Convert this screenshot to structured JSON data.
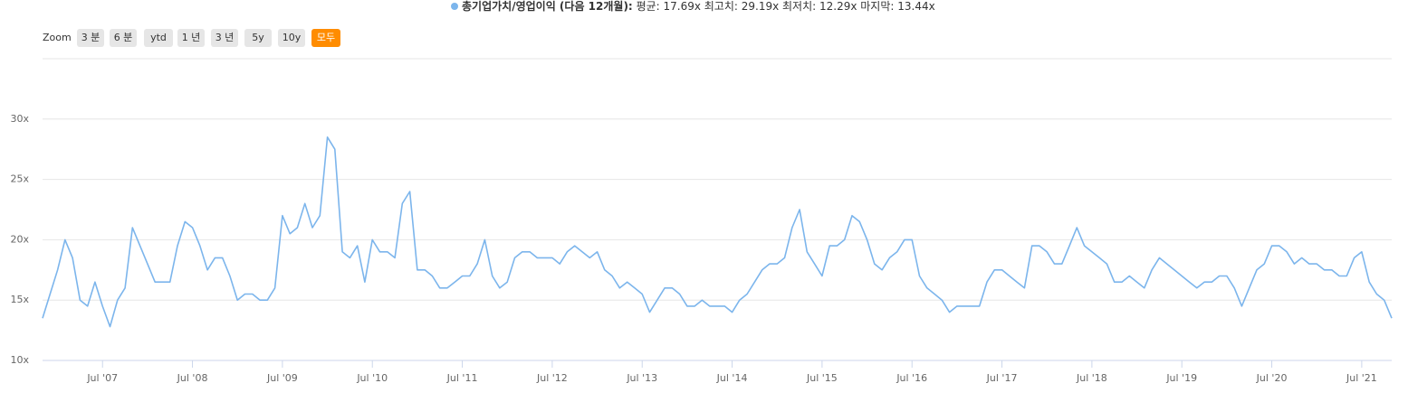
{
  "zoom_label": "Zoom",
  "zoom_buttons": [
    "3 분",
    "6 분",
    "ytd",
    "1 년",
    "3 년",
    "5y",
    "10y",
    "모두"
  ],
  "zoom_selected": 7,
  "chart_data": {
    "type": "line",
    "subtitle": "평균: 17.69x 최고치: 29.19x 최저치: 12.29x 마지막: 13.44x",
    "xlim": [
      "2006-11",
      "2021-11"
    ],
    "xticks": [
      {
        "value": "2007-07",
        "label": "Jul '07"
      },
      {
        "value": "2008-07",
        "label": "Jul '08"
      },
      {
        "value": "2009-07",
        "label": "Jul '09"
      },
      {
        "value": "2010-07",
        "label": "Jul '10"
      },
      {
        "value": "2011-07",
        "label": "Jul '11"
      },
      {
        "value": "2012-07",
        "label": "Jul '12"
      },
      {
        "value": "2013-07",
        "label": "Jul '13"
      },
      {
        "value": "2014-07",
        "label": "Jul '14"
      },
      {
        "value": "2015-07",
        "label": "Jul '15"
      },
      {
        "value": "2016-07",
        "label": "Jul '16"
      },
      {
        "value": "2017-07",
        "label": "Jul '17"
      },
      {
        "value": "2018-07",
        "label": "Jul '18"
      },
      {
        "value": "2019-07",
        "label": "Jul '19"
      },
      {
        "value": "2020-07",
        "label": "Jul '20"
      },
      {
        "value": "2021-07",
        "label": "Jul '21"
      }
    ],
    "ylim": [
      10,
      35
    ],
    "yticks": [
      {
        "value": 10,
        "label": "10x"
      },
      {
        "value": 15,
        "label": "15x"
      },
      {
        "value": 20,
        "label": "20x"
      },
      {
        "value": 25,
        "label": "25x"
      },
      {
        "value": 30,
        "label": "30x"
      }
    ],
    "grid": true,
    "series": [
      {
        "name": "총기업가치/영업이익 (다음 12개월):",
        "color": "#7cb5ec",
        "values": [
          13.5,
          15.5,
          17.5,
          20,
          18.5,
          15,
          14.5,
          16.5,
          14.5,
          12.8,
          15,
          16,
          21,
          19.5,
          18,
          16.5,
          16.5,
          16.5,
          19.5,
          21.5,
          21,
          19.5,
          17.5,
          18.5,
          18.5,
          17,
          15,
          15.5,
          15.5,
          15,
          15,
          16,
          22,
          20.5,
          21,
          23,
          21,
          22,
          28.5,
          27.5,
          19,
          18.5,
          19.5,
          16.5,
          20,
          19,
          19,
          18.5,
          23,
          24,
          17.5,
          17.5,
          17,
          16,
          16,
          16.5,
          17,
          17,
          18,
          20,
          17,
          16,
          16.5,
          18.5,
          19,
          19,
          18.5,
          18.5,
          18.5,
          18,
          19,
          19.5,
          19,
          18.5,
          19,
          17.5,
          17,
          16,
          16.5,
          16,
          15.5,
          14,
          15,
          16,
          16,
          15.5,
          14.5,
          14.5,
          15,
          14.5,
          14.5,
          14.5,
          14,
          15,
          15.5,
          16.5,
          17.5,
          18,
          18,
          18.5,
          21,
          22.5,
          19,
          18,
          17,
          19.5,
          19.5,
          20,
          22,
          21.5,
          20,
          18,
          17.5,
          18.5,
          19,
          20,
          20,
          17,
          16,
          15.5,
          15,
          14,
          14.5,
          14.5,
          14.5,
          14.5,
          16.5,
          17.5,
          17.5,
          17,
          16.5,
          16,
          19.5,
          19.5,
          19,
          18,
          18,
          19.5,
          21,
          19.5,
          19,
          18.5,
          18,
          16.5,
          16.5,
          17,
          16.5,
          16,
          17.5,
          18.5,
          18,
          17.5,
          17,
          16.5,
          16,
          16.5,
          16.5,
          17,
          17,
          16,
          14.5,
          16,
          17.5,
          18,
          19.5,
          19.5,
          19,
          18,
          18.5,
          18,
          18,
          17.5,
          17.5,
          17,
          17,
          18.5,
          19,
          16.5,
          15.5,
          15,
          13.5
        ]
      }
    ]
  }
}
